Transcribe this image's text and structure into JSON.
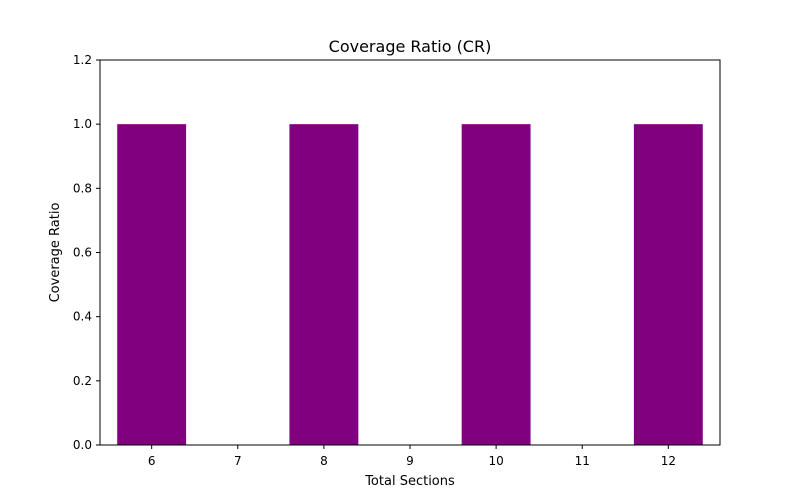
{
  "chart_data": {
    "type": "bar",
    "title": "Coverage Ratio (CR)",
    "xlabel": "Total Sections",
    "ylabel": "Coverage Ratio",
    "x": [
      6,
      8,
      10,
      12
    ],
    "values": [
      1.0,
      1.0,
      1.0,
      1.0
    ],
    "xticks": [
      6,
      7,
      8,
      9,
      10,
      11,
      12
    ],
    "xtick_labels": [
      "6",
      "7",
      "8",
      "9",
      "10",
      "11",
      "12"
    ],
    "yticks": [
      0.0,
      0.2,
      0.4,
      0.6,
      0.8,
      1.0,
      1.2
    ],
    "ytick_labels": [
      "0.0",
      "0.2",
      "0.4",
      "0.6",
      "0.8",
      "1.0",
      "1.2"
    ],
    "xlim": [
      5.4,
      12.6
    ],
    "ylim": [
      0,
      1.2
    ],
    "bar_width": 0.8,
    "bar_color": "#800080",
    "grid": false,
    "legend": false
  }
}
